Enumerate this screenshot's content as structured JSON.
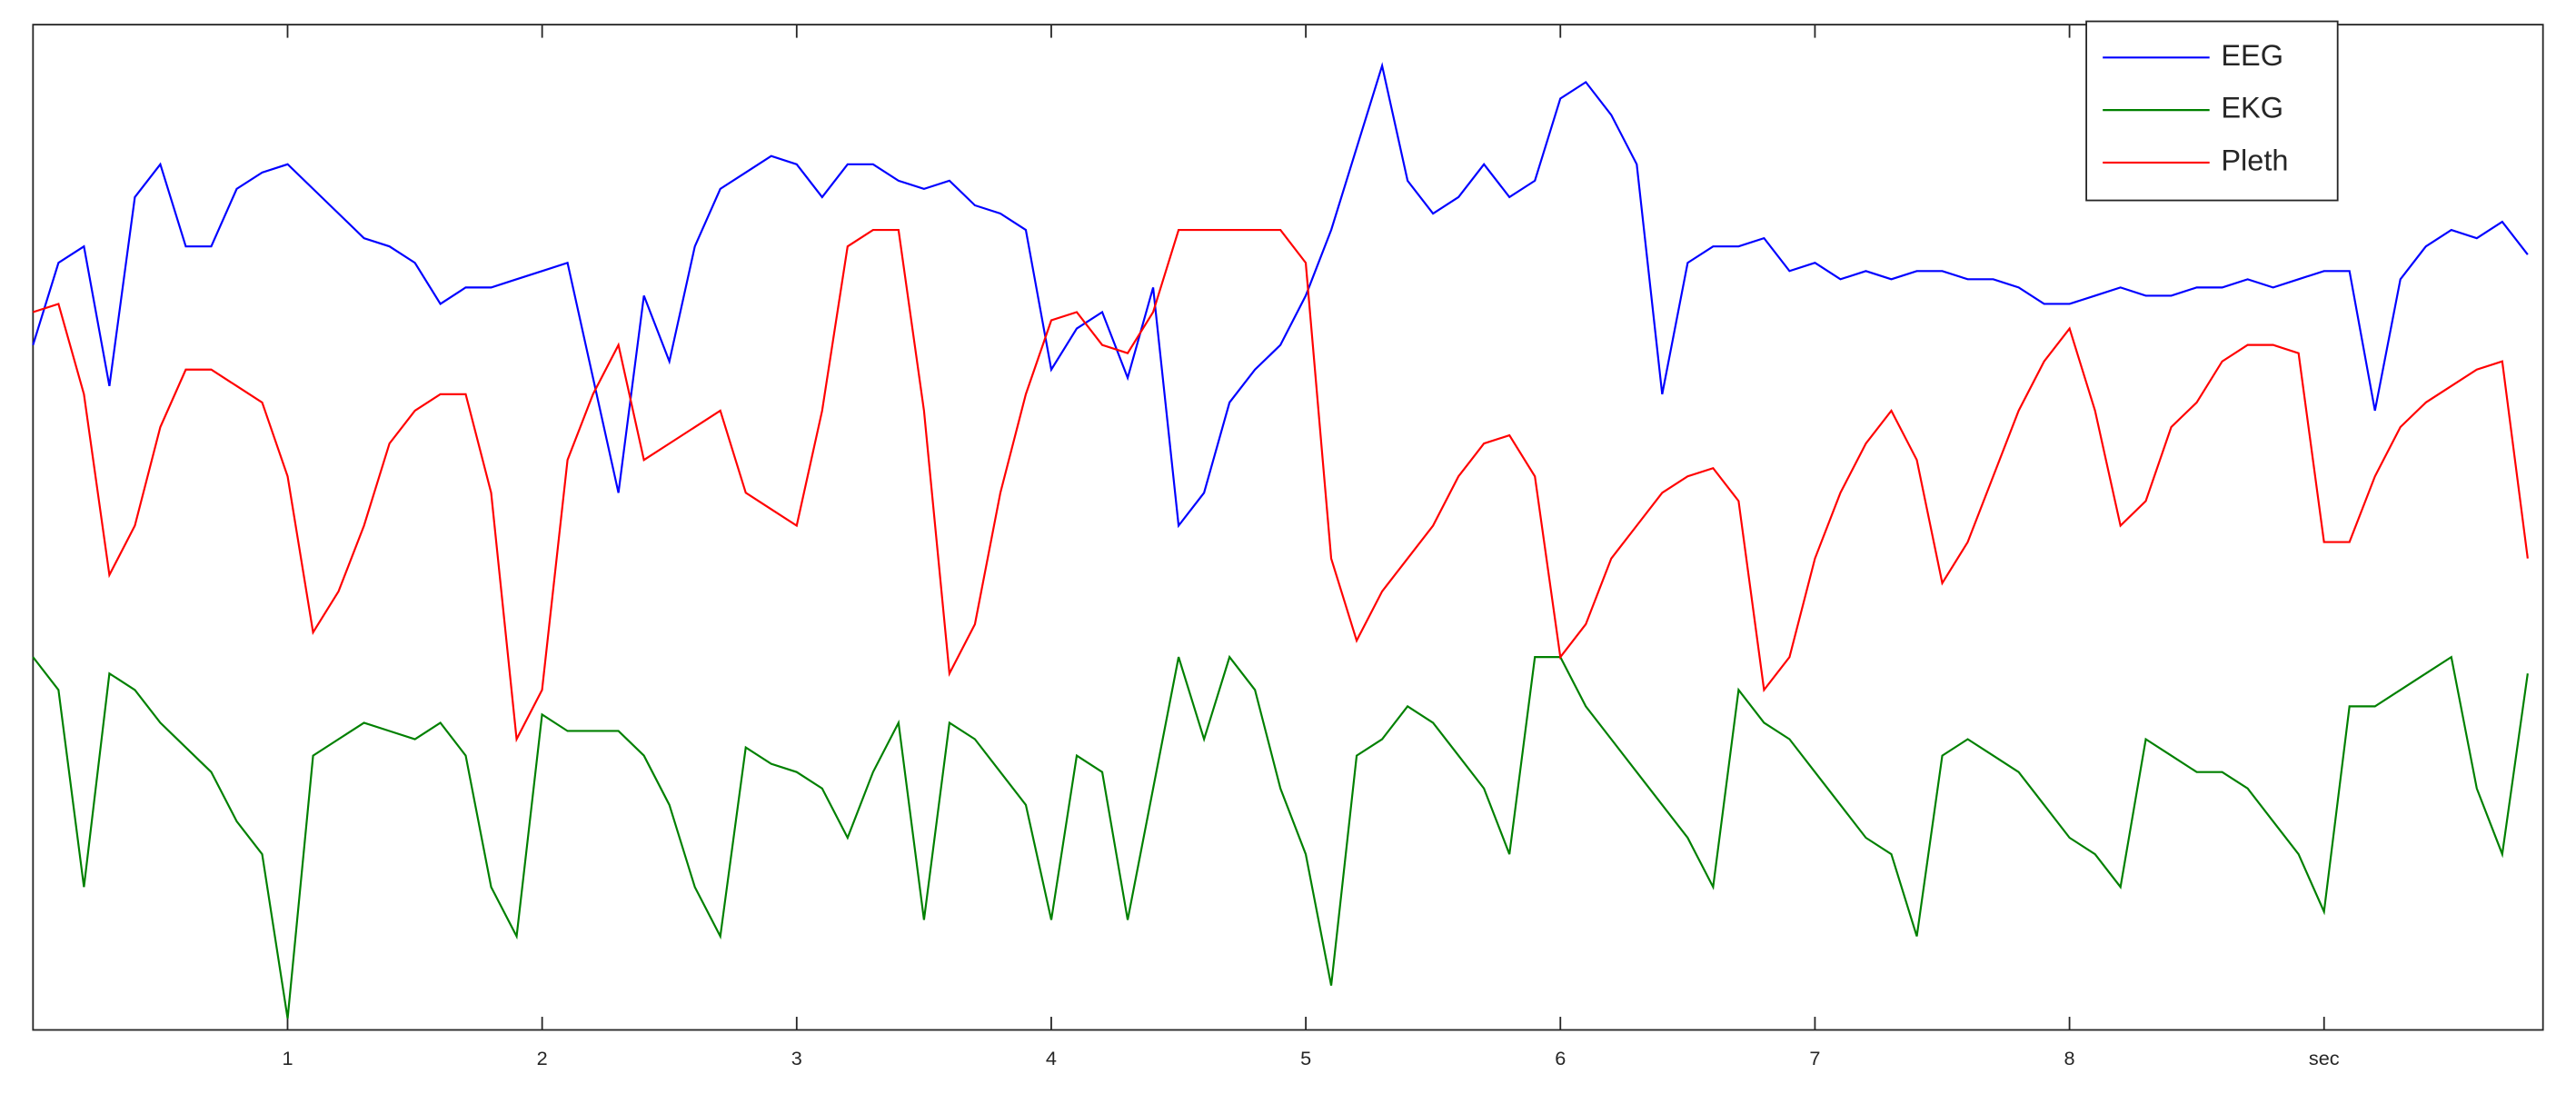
{
  "chart_data": {
    "type": "line",
    "x": [
      0,
      0.1,
      0.2,
      0.3,
      0.4,
      0.5,
      0.6,
      0.7,
      0.8,
      0.9,
      1,
      1.1,
      1.2,
      1.3,
      1.4,
      1.5,
      1.6,
      1.7,
      1.8,
      1.9,
      2,
      2.1,
      2.2,
      2.3,
      2.4,
      2.5,
      2.6,
      2.7,
      2.8,
      2.9,
      3,
      3.1,
      3.2,
      3.3,
      3.4,
      3.5,
      3.6,
      3.7,
      3.8,
      3.9,
      4,
      4.1,
      4.2,
      4.3,
      4.4,
      4.5,
      4.6,
      4.7,
      4.8,
      4.9,
      5,
      5.1,
      5.2,
      5.3,
      5.4,
      5.5,
      5.6,
      5.7,
      5.8,
      5.9,
      6,
      6.1,
      6.2,
      6.3,
      6.4,
      6.5,
      6.6,
      6.7,
      6.8,
      6.9,
      7,
      7.1,
      7.2,
      7.3,
      7.4,
      7.5,
      7.6,
      7.7,
      7.8,
      7.9,
      8,
      8.1,
      8.2,
      8.3,
      8.4,
      8.5,
      8.6,
      8.7,
      8.8,
      8.9,
      9,
      9.1,
      9.2,
      9.3,
      9.4,
      9.5,
      9.6,
      9.7,
      9.8
    ],
    "series": [
      {
        "name": "EEG",
        "color": "#0000ff",
        "values": [
          417,
          467,
          477,
          392,
          507,
          527,
          477,
          477,
          512,
          522,
          527,
          512,
          497,
          482,
          477,
          467,
          442,
          452,
          452,
          457,
          462,
          467,
          397,
          327,
          447,
          407,
          477,
          512,
          522,
          532,
          527,
          507,
          527,
          527,
          517,
          512,
          517,
          502,
          497,
          487,
          402,
          427,
          437,
          397,
          452,
          307,
          327,
          382,
          402,
          417,
          447,
          487,
          537,
          587,
          517,
          497,
          507,
          527,
          507,
          517,
          567,
          577,
          557,
          527,
          387,
          467,
          477,
          477,
          482,
          462,
          467,
          457,
          462,
          457,
          462,
          462,
          457,
          457,
          452,
          442,
          442,
          447,
          452,
          447,
          447,
          452,
          452,
          457,
          452,
          457,
          462,
          462,
          377,
          457,
          477,
          487,
          482,
          492,
          472
        ]
      },
      {
        "name": "EKG",
        "color": "#008000",
        "values": [
          227,
          207,
          87,
          217,
          207,
          187,
          172,
          157,
          127,
          107,
          7,
          167,
          177,
          187,
          182,
          177,
          187,
          167,
          87,
          57,
          192,
          182,
          182,
          182,
          167,
          137,
          87,
          57,
          172,
          162,
          157,
          147,
          117,
          157,
          187,
          67,
          187,
          177,
          157,
          137,
          67,
          167,
          157,
          67,
          147,
          227,
          177,
          227,
          207,
          147,
          107,
          27,
          167,
          177,
          197,
          187,
          167,
          147,
          107,
          227,
          227,
          197,
          177,
          157,
          137,
          117,
          87,
          207,
          187,
          177,
          157,
          137,
          117,
          107,
          57,
          167,
          177,
          167,
          157,
          137,
          117,
          107,
          87,
          177,
          167,
          157,
          157,
          147,
          127,
          107,
          72,
          197,
          197,
          207,
          217,
          227,
          147,
          107,
          217
        ]
      },
      {
        "name": "Pleth",
        "color": "#ff0000",
        "values": [
          437,
          442,
          387,
          277,
          307,
          367,
          402,
          402,
          392,
          382,
          337,
          242,
          267,
          307,
          357,
          377,
          387,
          387,
          327,
          177,
          207,
          347,
          387,
          417,
          347,
          357,
          367,
          377,
          327,
          317,
          307,
          377,
          477,
          487,
          487,
          377,
          217,
          247,
          327,
          387,
          432,
          437,
          417,
          412,
          437,
          487,
          487,
          487,
          487,
          487,
          467,
          287,
          237,
          267,
          287,
          307,
          337,
          357,
          362,
          337,
          227,
          247,
          287,
          307,
          327,
          337,
          342,
          322,
          207,
          227,
          287,
          327,
          357,
          377,
          347,
          272,
          297,
          337,
          377,
          407,
          427,
          377,
          307,
          322,
          367,
          382,
          407,
          417,
          417,
          412,
          297,
          297,
          337,
          367,
          382,
          392,
          402,
          407,
          287
        ]
      }
    ],
    "xlim": [
      0,
      9.86
    ],
    "ylim": [
      0,
      612
    ],
    "xticks": [
      1,
      2,
      3,
      4,
      5,
      6,
      7,
      8,
      {
        "value": 9,
        "label": "sec"
      }
    ],
    "legend": "upper right"
  }
}
